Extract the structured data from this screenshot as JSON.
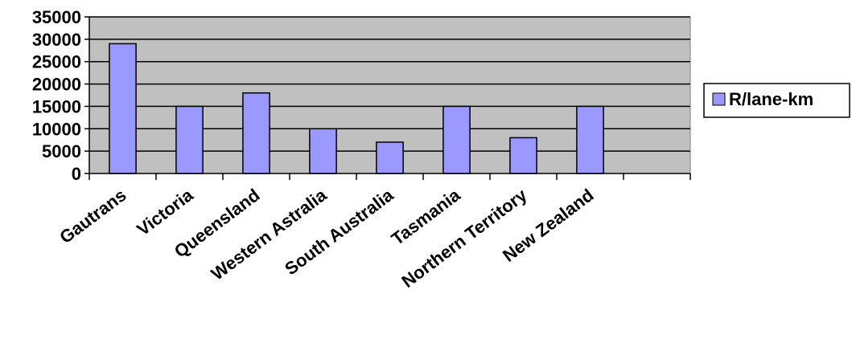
{
  "chart_data": {
    "type": "bar",
    "categories": [
      "Gautrans",
      "Victoria",
      "Queensland",
      "Western Astralia",
      "South Australia",
      "Tasmania",
      "Northern Territory",
      "New Zealand",
      ""
    ],
    "series": [
      {
        "name": "R/lane-km",
        "values": [
          29000,
          15000,
          18000,
          10000,
          7000,
          15000,
          8000,
          15000,
          null
        ]
      }
    ],
    "yticks": [
      "35000",
      "30000",
      "25000",
      "20000",
      "15000",
      "10000",
      "5000",
      "0"
    ],
    "ylim": [
      0,
      35000
    ],
    "grid": true,
    "legend_position": "right",
    "colors": {
      "plot_background": "#c0c0c0",
      "bar_fill": "#9999ff",
      "bar_stroke": "#000000",
      "gridline": "#000000"
    }
  }
}
